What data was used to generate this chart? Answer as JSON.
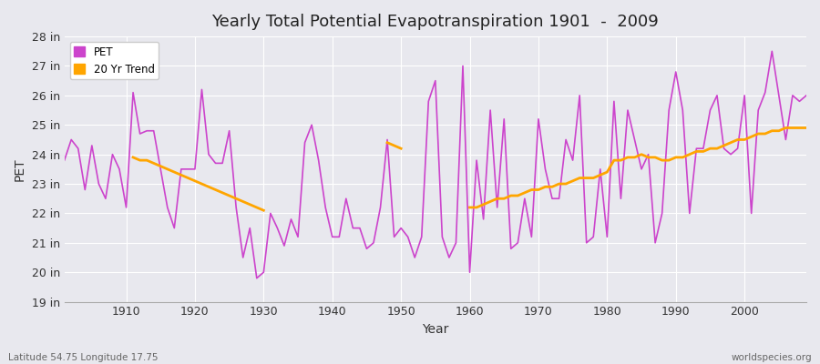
{
  "title": "Yearly Total Potential Evapotranspiration 1901  -  2009",
  "xlabel": "Year",
  "ylabel": "PET",
  "pet_color": "#CC44CC",
  "trend_color": "#FFA500",
  "background_color": "#E8E8EE",
  "ylim": [
    19,
    28
  ],
  "yticks": [
    19,
    20,
    21,
    22,
    23,
    24,
    25,
    26,
    27,
    28
  ],
  "ytick_labels": [
    "19 in",
    "20 in",
    "21 in",
    "22 in",
    "23 in",
    "24 in",
    "25 in",
    "26 in",
    "27 in",
    "28 in"
  ],
  "xlim": [
    1901,
    2009
  ],
  "xticks": [
    1910,
    1920,
    1930,
    1940,
    1950,
    1960,
    1970,
    1980,
    1990,
    2000
  ],
  "footer_left": "Latitude 54.75 Longitude 17.75",
  "footer_right": "worldspecies.org",
  "legend_labels": [
    "PET",
    "20 Yr Trend"
  ],
  "years": [
    1901,
    1902,
    1903,
    1904,
    1905,
    1906,
    1907,
    1908,
    1909,
    1910,
    1911,
    1912,
    1913,
    1914,
    1915,
    1916,
    1917,
    1918,
    1919,
    1920,
    1921,
    1922,
    1923,
    1924,
    1925,
    1926,
    1927,
    1928,
    1929,
    1930,
    1931,
    1932,
    1933,
    1934,
    1935,
    1936,
    1937,
    1938,
    1939,
    1940,
    1941,
    1942,
    1943,
    1944,
    1945,
    1946,
    1947,
    1948,
    1949,
    1950,
    1951,
    1952,
    1953,
    1954,
    1955,
    1956,
    1957,
    1958,
    1959,
    1960,
    1961,
    1962,
    1963,
    1964,
    1965,
    1966,
    1967,
    1968,
    1969,
    1970,
    1971,
    1972,
    1973,
    1974,
    1975,
    1976,
    1977,
    1978,
    1979,
    1980,
    1981,
    1982,
    1983,
    1984,
    1985,
    1986,
    1987,
    1988,
    1989,
    1990,
    1991,
    1992,
    1993,
    1994,
    1995,
    1996,
    1997,
    1998,
    1999,
    2000,
    2001,
    2002,
    2003,
    2004,
    2005,
    2006,
    2007,
    2008,
    2009
  ],
  "pet": [
    23.8,
    24.5,
    24.2,
    22.8,
    24.3,
    23.0,
    22.5,
    24.0,
    23.5,
    22.2,
    26.1,
    24.7,
    24.8,
    24.8,
    23.5,
    22.2,
    21.5,
    23.5,
    23.5,
    23.5,
    26.2,
    24.0,
    23.7,
    23.7,
    24.8,
    22.2,
    20.5,
    21.5,
    19.8,
    20.0,
    22.0,
    21.5,
    20.9,
    21.8,
    21.2,
    24.4,
    25.0,
    23.8,
    22.2,
    21.2,
    21.2,
    22.5,
    21.5,
    21.5,
    20.8,
    21.0,
    22.2,
    24.5,
    21.2,
    21.5,
    21.2,
    20.5,
    21.2,
    25.8,
    26.5,
    21.2,
    20.5,
    21.0,
    27.0,
    20.0,
    23.8,
    21.8,
    25.5,
    22.2,
    25.2,
    20.8,
    21.0,
    22.5,
    21.2,
    25.2,
    23.5,
    22.5,
    22.5,
    24.5,
    23.8,
    26.0,
    21.0,
    21.2,
    23.5,
    21.2,
    25.8,
    22.5,
    25.5,
    24.5,
    23.5,
    24.0,
    21.0,
    22.0,
    25.5,
    26.8,
    25.5,
    22.0,
    24.2,
    24.2,
    25.5,
    26.0,
    24.2,
    24.0,
    24.2,
    26.0,
    22.0,
    25.5,
    26.1,
    27.5,
    26.0,
    24.5,
    26.0,
    25.8,
    26.0
  ],
  "trend_seg1_years": [
    1911,
    1912,
    1913,
    1914,
    1915,
    1916,
    1917,
    1918,
    1919,
    1920,
    1921,
    1922,
    1923,
    1924,
    1925,
    1926,
    1927,
    1928,
    1929,
    1930
  ],
  "trend_seg1": [
    23.9,
    23.8,
    23.8,
    23.7,
    23.6,
    23.5,
    23.4,
    23.3,
    23.2,
    23.1,
    23.0,
    22.9,
    22.8,
    22.7,
    22.6,
    22.5,
    22.4,
    22.3,
    22.2,
    22.1
  ],
  "trend_seg2_years": [
    1948,
    1949,
    1950
  ],
  "trend_seg2": [
    24.4,
    24.3,
    24.2
  ],
  "trend_seg3_years": [
    1960,
    1961,
    1962,
    1963,
    1964,
    1965,
    1966,
    1967,
    1968,
    1969,
    1970,
    1971,
    1972,
    1973,
    1974,
    1975,
    1976,
    1977,
    1978,
    1979,
    1980,
    1981,
    1982,
    1983,
    1984,
    1985,
    1986,
    1987,
    1988,
    1989,
    1990,
    1991,
    1992,
    1993,
    1994,
    1995,
    1996,
    1997,
    1998,
    1999,
    2000,
    2001,
    2002,
    2003,
    2004,
    2005,
    2006,
    2007,
    2008,
    2009
  ],
  "trend_seg3": [
    22.2,
    22.2,
    22.3,
    22.4,
    22.5,
    22.5,
    22.6,
    22.6,
    22.7,
    22.8,
    22.8,
    22.9,
    22.9,
    23.0,
    23.0,
    23.1,
    23.2,
    23.2,
    23.2,
    23.3,
    23.4,
    23.8,
    23.8,
    23.9,
    23.9,
    24.0,
    23.9,
    23.9,
    23.8,
    23.8,
    23.9,
    23.9,
    24.0,
    24.1,
    24.1,
    24.2,
    24.2,
    24.3,
    24.4,
    24.5,
    24.5,
    24.6,
    24.7,
    24.7,
    24.8,
    24.8,
    24.9,
    24.9,
    24.9,
    24.9
  ]
}
